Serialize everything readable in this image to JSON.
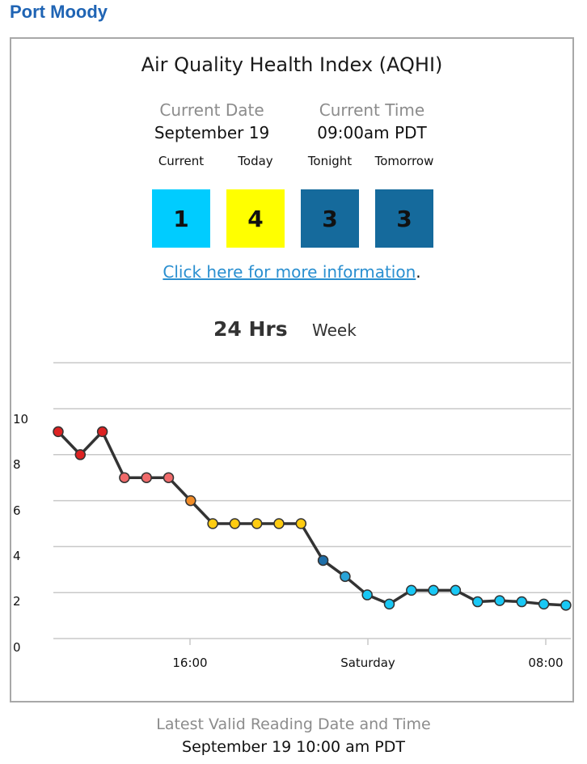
{
  "location": "Port Moody",
  "card": {
    "title": "Air Quality Health Index (AQHI)",
    "current_date_label": "Current Date",
    "current_date": "September 19",
    "current_time_label": "Current Time",
    "current_time": "09:00am PDT",
    "forecast": [
      {
        "label": "Current",
        "value": "1",
        "color": "#00ccff"
      },
      {
        "label": "Today",
        "value": "4",
        "color": "#ffff00"
      },
      {
        "label": "Tonight",
        "value": "3",
        "color": "#156a9c"
      },
      {
        "label": "Tomorrow",
        "value": "3",
        "color": "#156a9c"
      }
    ],
    "more_link": "Click here for more information",
    "more_suffix": ".",
    "tabs": {
      "day": "24 Hrs",
      "week": "Week",
      "selected": "24 Hrs"
    }
  },
  "chart_data": {
    "type": "line",
    "ylim": [
      0,
      10
    ],
    "ytick_labels": [
      "0",
      "2",
      "4",
      "6",
      "8",
      "10"
    ],
    "xtick_labels": [
      "16:00",
      "Saturday",
      "08:00"
    ],
    "grid": true,
    "line_color": "#333333",
    "values": [
      9,
      8,
      9,
      7,
      7,
      7,
      6,
      5,
      5,
      5,
      5,
      5,
      3.4,
      2.7,
      1.9,
      1.5,
      2.1,
      2.1,
      2.1,
      1.6,
      1.65,
      1.6,
      1.5,
      1.45
    ],
    "colors": [
      "#dd2222",
      "#dd2222",
      "#dd2222",
      "#f06a6a",
      "#f06a6a",
      "#f06a6a",
      "#f08c28",
      "#ffcc11",
      "#ffcc11",
      "#ffcc11",
      "#ffcc11",
      "#ffcc11",
      "#1e6ea8",
      "#2aa4d8",
      "#19c8f5",
      "#19c8f5",
      "#19c8f5",
      "#19c8f5",
      "#19c8f5",
      "#19c8f5",
      "#19c8f5",
      "#19c8f5",
      "#19c8f5",
      "#19c8f5"
    ]
  },
  "footer": {
    "label": "Latest Valid Reading Date and Time",
    "value": "September 19 10:00 am PDT"
  }
}
